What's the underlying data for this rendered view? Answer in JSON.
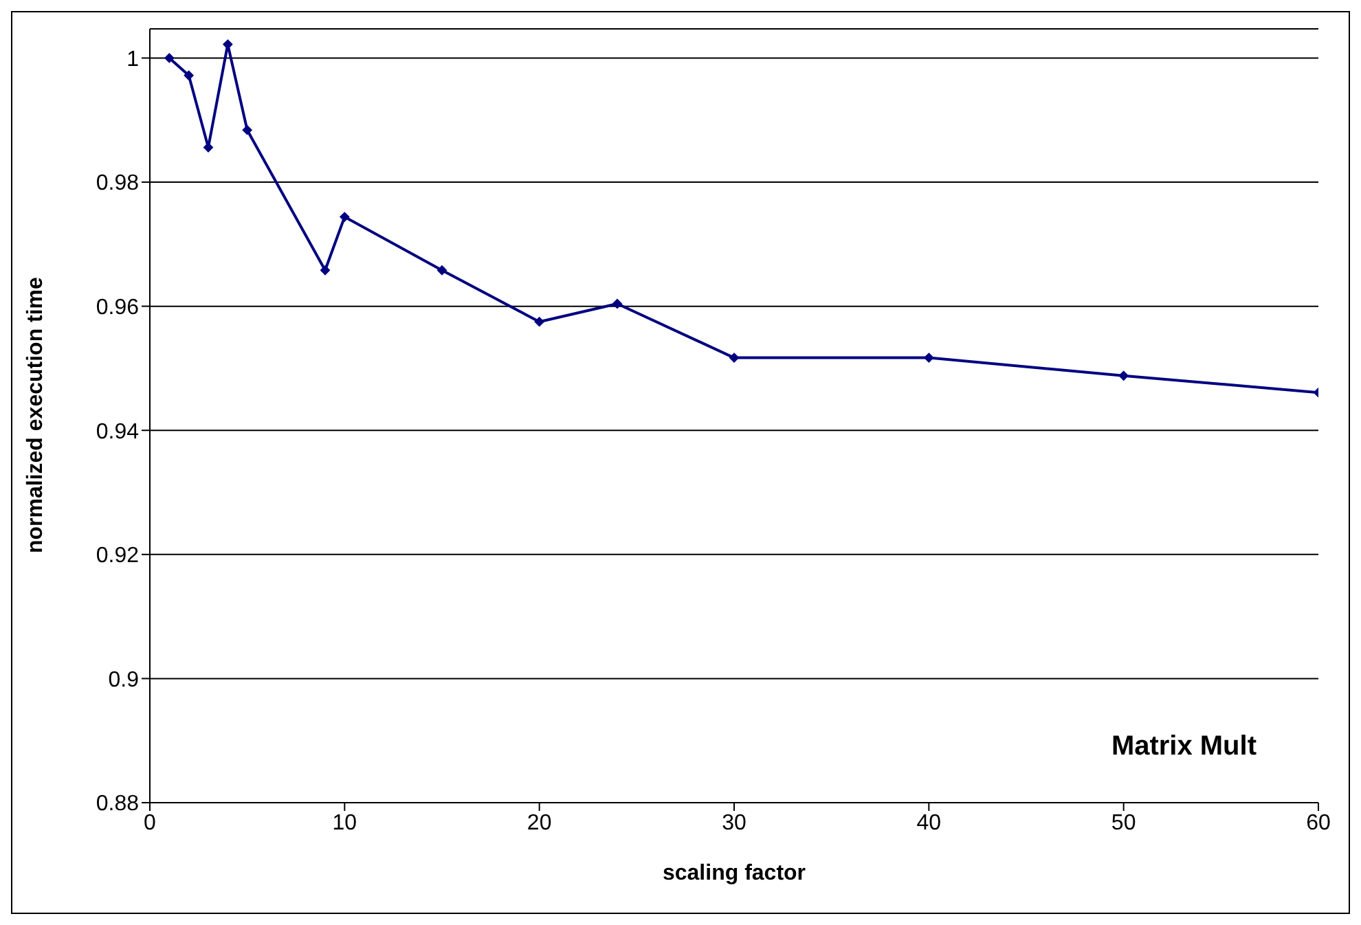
{
  "chart_data": {
    "type": "line",
    "xlabel": "scaling factor",
    "ylabel": "normalized execution time",
    "annotations": [
      "Matrix Mult"
    ],
    "x": [
      1,
      2,
      3,
      4,
      5,
      9,
      10,
      15,
      20,
      24,
      30,
      40,
      50,
      60
    ],
    "series": [
      {
        "color": "#000080",
        "values": [
          1.0,
          0.9972,
          0.9856,
          1.0022,
          0.9884,
          0.9658,
          0.9744,
          0.9658,
          0.9575,
          0.9604,
          0.9517,
          0.9517,
          0.9488,
          0.9461
        ]
      }
    ],
    "xlim": [
      0,
      60
    ],
    "xticks": [
      0,
      10,
      20,
      30,
      40,
      50,
      60
    ],
    "ylim": [
      0.88,
      1.0047
    ],
    "yticks": [
      0.88,
      0.9,
      0.92,
      0.94,
      0.96,
      0.98,
      1
    ],
    "grid": "y",
    "marker": "diamond",
    "line_style": "solid",
    "legend": false
  }
}
